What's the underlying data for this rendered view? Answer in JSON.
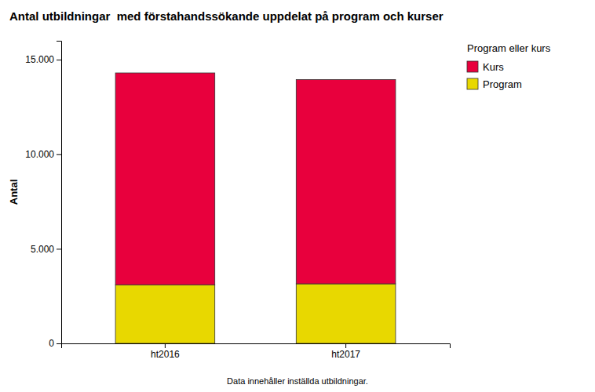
{
  "chart_data": {
    "type": "bar",
    "title": "Antal utbildningar  med förstahandssökande uppdelat på program och kurser",
    "ylabel": "Antal",
    "categories": [
      "ht2016",
      "ht2017"
    ],
    "series": [
      {
        "name": "Program",
        "color": "#E8D800",
        "values": [
          3100,
          3150
        ]
      },
      {
        "name": "Kurs",
        "color": "#E8003D",
        "values": [
          11200,
          10800
        ]
      }
    ],
    "stacked": true,
    "ylim": [
      0,
      16000
    ],
    "yticks": [
      0,
      {
        "value": 5000,
        "label": "5.000"
      },
      {
        "value": 10000,
        "label": "10.000"
      },
      {
        "value": 15000,
        "label": "15.000"
      }
    ],
    "grid": false,
    "legend": "right",
    "legend_title": "Program eller kurs",
    "footnote": "Data innehåller inställda utbildningar."
  }
}
